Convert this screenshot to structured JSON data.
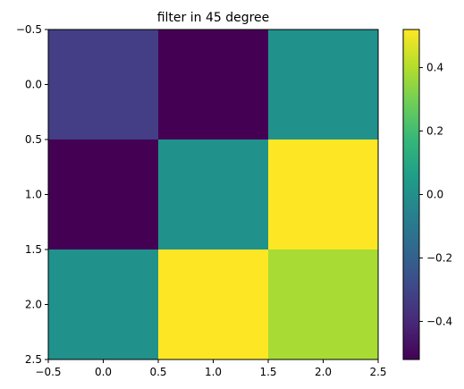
{
  "chart_data": {
    "type": "heatmap",
    "title": "filter in 45 degree",
    "xlabel": "",
    "ylabel": "",
    "x_ticks": [
      "−0.5",
      "0.0",
      "0.5",
      "1.0",
      "1.5",
      "2.0",
      "2.5"
    ],
    "y_ticks": [
      "−0.5",
      "0.0",
      "0.5",
      "1.0",
      "1.5",
      "2.0",
      "2.5"
    ],
    "xlim": [
      -0.5,
      2.5
    ],
    "ylim": [
      2.5,
      -0.5
    ],
    "matrix": [
      [
        -0.4,
        -0.52,
        0.0
      ],
      [
        -0.52,
        0.0,
        0.52
      ],
      [
        0.0,
        0.52,
        0.4
      ]
    ],
    "colormap": "viridis",
    "vmin": -0.52,
    "vmax": 0.52,
    "colorbar_ticks": [
      {
        "value": 0.4,
        "label": "0.4"
      },
      {
        "value": 0.2,
        "label": "0.2"
      },
      {
        "value": 0.0,
        "label": "0.0"
      },
      {
        "value": -0.2,
        "label": "−0.2"
      },
      {
        "value": -0.4,
        "label": "−0.4"
      }
    ],
    "cell_colors": [
      [
        "#433e85",
        "#440154",
        "#21918c"
      ],
      [
        "#440154",
        "#21918c",
        "#fde725"
      ],
      [
        "#21918c",
        "#fde725",
        "#a8db34"
      ]
    ],
    "colorbar_gradient": [
      "#440154",
      "#482878",
      "#3e4989",
      "#31688e",
      "#26828e",
      "#1f9e89",
      "#35b779",
      "#6ece58",
      "#b5de2b",
      "#fde725"
    ],
    "grid": false
  }
}
